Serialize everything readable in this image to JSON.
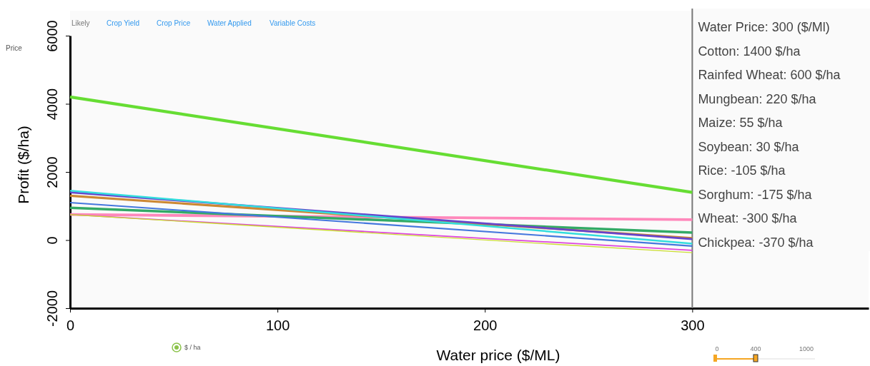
{
  "chart_data": {
    "type": "line",
    "xlabel": "Water price ($/ML)",
    "ylabel": "Profit ($/ha)",
    "xlim": [
      0,
      385
    ],
    "xticks": [
      0,
      100,
      200,
      300
    ],
    "ylim": [
      -2000,
      6000
    ],
    "yticks": [
      -2000,
      0,
      2000,
      4000,
      6000
    ],
    "grid": false,
    "line_style": "solid",
    "marker": "none",
    "x": [
      0,
      300
    ],
    "series": [
      {
        "color": "#66dd33",
        "values": [
          4200,
          1400
        ]
      },
      {
        "color": "#ff88bb",
        "values": [
          750,
          600
        ]
      },
      {
        "color": "#33aa66",
        "values": [
          950,
          220
        ]
      },
      {
        "color": "#cc8833",
        "values": [
          1300,
          55
        ]
      },
      {
        "color": "#6644cc",
        "values": [
          1400,
          30
        ]
      },
      {
        "color": "#33dddd",
        "values": [
          1450,
          -105
        ]
      },
      {
        "color": "#4477dd",
        "values": [
          1100,
          -175
        ]
      },
      {
        "color": "#dd44dd",
        "values": [
          750,
          -300
        ]
      },
      {
        "color": "#ccdd33",
        "values": [
          750,
          -370
        ]
      }
    ],
    "ref_lines": [
      {
        "axis": "x",
        "value": 300,
        "color": "#777777"
      }
    ],
    "annotations": [
      "Water Price: 300 ($/Ml)",
      "Cotton: 1400 $/ha",
      "Rainfed Wheat: 600 $/ha",
      "Mungbean: 220 $/ha",
      "Maize: 55 $/ha",
      "Soybean: 30 $/ha",
      "Rice: -105 $/ha",
      "Sorghum: -175 $/ha",
      "Wheat: -300 $/ha",
      "Chickpea: -370 $/ha",
      "Likely",
      "Crop Yield",
      "Crop Price",
      "Water Applied",
      "Variable Costs",
      "Price",
      "$ / ha",
      "0",
      "400",
      "1000"
    ]
  }
}
